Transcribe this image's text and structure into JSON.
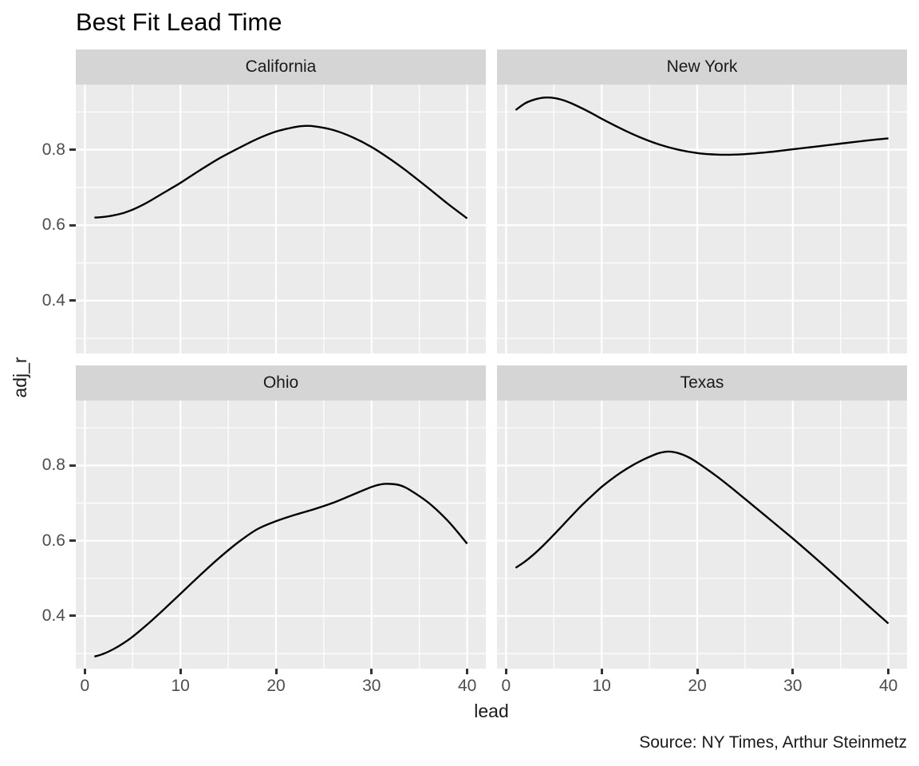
{
  "colors": {
    "background": "#FFFFFF",
    "panel_bg": "#EBEBEB",
    "strip_bg": "#D5D5D5",
    "gridline": "#FFFFFF",
    "line": "#000000",
    "tick_mark": "#333333",
    "tick_label": "#4D4D4D",
    "text": "#1A1A1A"
  },
  "chart_data": {
    "type": "line",
    "title": "Best Fit Lead Time",
    "xlabel": "lead",
    "ylabel": "adj_r",
    "caption": "Source: NY Times, Arthur Steinmetz",
    "legend": "none",
    "grid": true,
    "x_ticks": [
      0,
      10,
      20,
      30,
      40
    ],
    "x_minor_ticks": [
      5,
      15,
      25,
      35
    ],
    "y_ticks": [
      0.4,
      0.6,
      0.8
    ],
    "y_minor_ticks": [
      0.3,
      0.5,
      0.7,
      0.9
    ],
    "xlim": [
      -0.95,
      41.95
    ],
    "ylim": [
      0.26,
      0.9725
    ],
    "facets": [
      {
        "label": "California",
        "x": [
          1,
          2,
          3,
          4,
          5,
          6,
          7,
          8,
          9,
          10,
          12,
          14,
          16,
          18,
          20,
          22,
          23,
          24,
          26,
          28,
          30,
          32,
          34,
          36,
          38,
          40
        ],
        "y": [
          0.62,
          0.622,
          0.626,
          0.632,
          0.641,
          0.653,
          0.667,
          0.682,
          0.697,
          0.712,
          0.745,
          0.776,
          0.803,
          0.828,
          0.848,
          0.86,
          0.863,
          0.862,
          0.852,
          0.833,
          0.807,
          0.774,
          0.737,
          0.697,
          0.656,
          0.618
        ]
      },
      {
        "label": "New York",
        "x": [
          1,
          2,
          3,
          4,
          5,
          6,
          7,
          8,
          9,
          10,
          12,
          14,
          16,
          18,
          20,
          22,
          24,
          26,
          28,
          30,
          32,
          34,
          36,
          38,
          40
        ],
        "y": [
          0.905,
          0.923,
          0.933,
          0.938,
          0.937,
          0.931,
          0.921,
          0.909,
          0.896,
          0.882,
          0.856,
          0.833,
          0.814,
          0.8,
          0.791,
          0.787,
          0.787,
          0.79,
          0.795,
          0.801,
          0.807,
          0.813,
          0.819,
          0.825,
          0.83
        ]
      },
      {
        "label": "Ohio",
        "x": [
          1,
          2,
          3,
          4,
          5,
          6,
          7,
          8,
          9,
          10,
          12,
          14,
          16,
          18,
          20,
          22,
          24,
          26,
          28,
          30,
          31,
          32,
          33,
          34,
          36,
          38,
          40
        ],
        "y": [
          0.292,
          0.3,
          0.312,
          0.327,
          0.345,
          0.366,
          0.388,
          0.411,
          0.435,
          0.459,
          0.507,
          0.553,
          0.595,
          0.63,
          0.652,
          0.669,
          0.684,
          0.701,
          0.722,
          0.743,
          0.75,
          0.751,
          0.747,
          0.735,
          0.7,
          0.652,
          0.592
        ]
      },
      {
        "label": "Texas",
        "x": [
          1,
          2,
          3,
          4,
          5,
          6,
          7,
          8,
          9,
          10,
          11,
          12,
          13,
          14,
          15,
          16,
          17,
          18,
          19,
          20,
          22,
          24,
          26,
          28,
          30,
          32,
          34,
          36,
          38,
          40
        ],
        "y": [
          0.528,
          0.545,
          0.566,
          0.59,
          0.616,
          0.643,
          0.67,
          0.696,
          0.72,
          0.743,
          0.763,
          0.781,
          0.797,
          0.811,
          0.823,
          0.833,
          0.837,
          0.833,
          0.823,
          0.808,
          0.772,
          0.732,
          0.69,
          0.648,
          0.606,
          0.562,
          0.517,
          0.471,
          0.425,
          0.38
        ]
      }
    ]
  }
}
